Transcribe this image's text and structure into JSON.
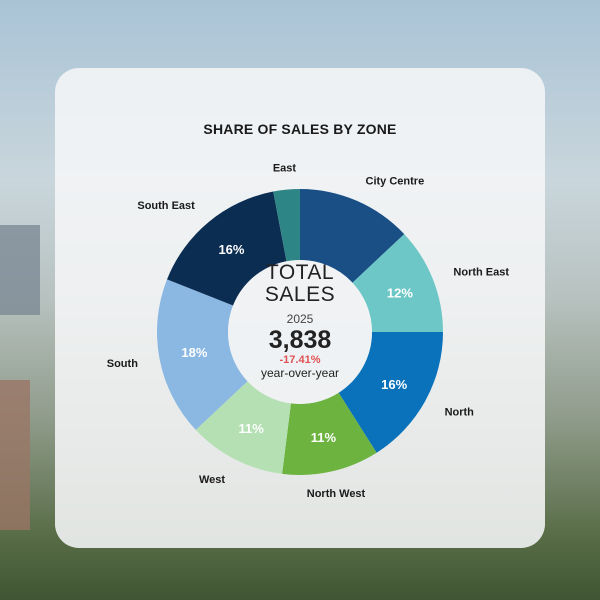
{
  "chart_data": {
    "type": "pie",
    "variant": "donut",
    "title": "SHARE OF SALES BY ZONE",
    "slices": [
      {
        "label": "City Centre",
        "value": 13,
        "value_label": "",
        "color": "#1a4f86"
      },
      {
        "label": "North East",
        "value": 12,
        "value_label": "12%",
        "color": "#6cc7c6"
      },
      {
        "label": "North",
        "value": 16,
        "value_label": "16%",
        "color": "#0a72bb"
      },
      {
        "label": "North West",
        "value": 11,
        "value_label": "11%",
        "color": "#6db33f"
      },
      {
        "label": "West",
        "value": 11,
        "value_label": "11%",
        "color": "#b5e0b3"
      },
      {
        "label": "South",
        "value": 18,
        "value_label": "18%",
        "color": "#8ab8e3"
      },
      {
        "label": "South East",
        "value": 16,
        "value_label": "16%",
        "color": "#0c2d52"
      },
      {
        "label": "East",
        "value": 3,
        "value_label": "",
        "color": "#2e8585"
      }
    ],
    "center": {
      "line1": "TOTAL",
      "line2": "SALES",
      "year": "2025",
      "total": "3,838",
      "change": "-17.41%",
      "change_label": "year-over-year"
    }
  }
}
